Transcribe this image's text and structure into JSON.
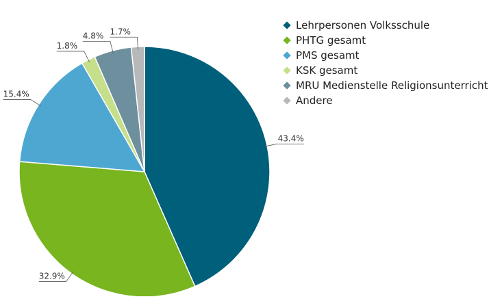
{
  "chart_data": {
    "type": "pie",
    "categories": [
      "Lehrpersonen Volksschule",
      "PHTG gesamt",
      "PMS gesamt",
      "KSK gesamt",
      "MRU Medienstelle Religionsunterricht",
      "Andere"
    ],
    "values": [
      43.4,
      32.9,
      15.4,
      1.8,
      4.8,
      1.7
    ],
    "value_labels": [
      "43.4%",
      "32.9%",
      "15.4%",
      "1.8%",
      "4.8%",
      "1.7%"
    ],
    "colors": [
      "#005f7a",
      "#78b51f",
      "#4ea7d1",
      "#c5df8a",
      "#6e8f9e",
      "#b6b8ba"
    ],
    "legend": "right"
  }
}
